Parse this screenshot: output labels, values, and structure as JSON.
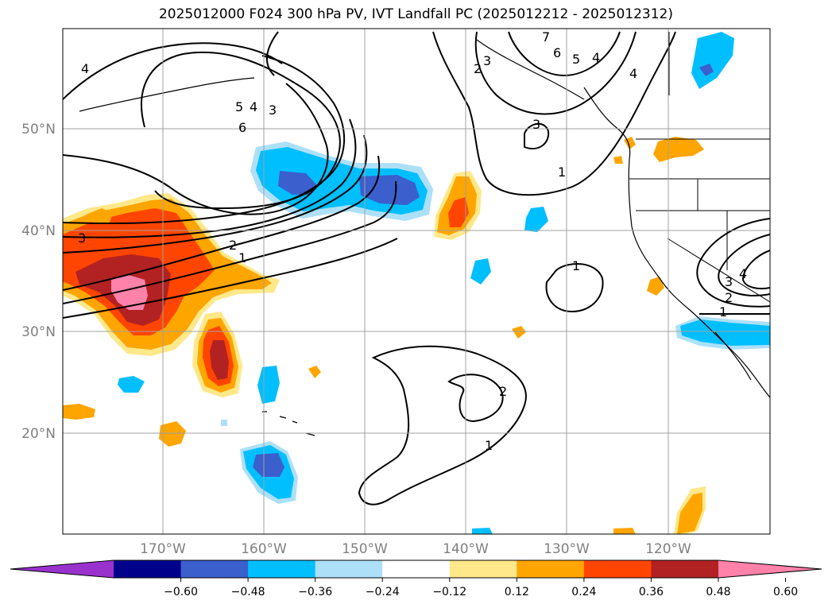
{
  "title": "2025012000 F024 300 hPa PV, IVT Landfall PC (2025012212 - 2025012312)",
  "map": {
    "lat_labels": [
      "50°N",
      "40°N",
      "30°N",
      "20°N"
    ],
    "lon_labels": [
      "170°W",
      "160°W",
      "150°W",
      "140°W",
      "130°W",
      "120°W"
    ]
  },
  "colorbar": {
    "levels": [
      "−0.60",
      "−0.48",
      "−0.36",
      "−0.24",
      "−0.12",
      "0.12",
      "0.24",
      "0.36",
      "0.48",
      "0.60"
    ],
    "colors": [
      "#9932CC",
      "#00008B",
      "#3B5FCD",
      "#00BFFF",
      "#ADE0F8",
      "#FFFFFF",
      "#FFE88A",
      "#FFA500",
      "#FF4500",
      "#B22222",
      "#FF82AB"
    ]
  },
  "contour_labels": [
    "4",
    "5",
    "4",
    "3",
    "6",
    "2",
    "1",
    "3",
    "7",
    "6",
    "5",
    "4",
    "4",
    "3",
    "1",
    "3",
    "2",
    "1",
    "1",
    "2",
    "1",
    "4",
    "3",
    "2"
  ]
}
